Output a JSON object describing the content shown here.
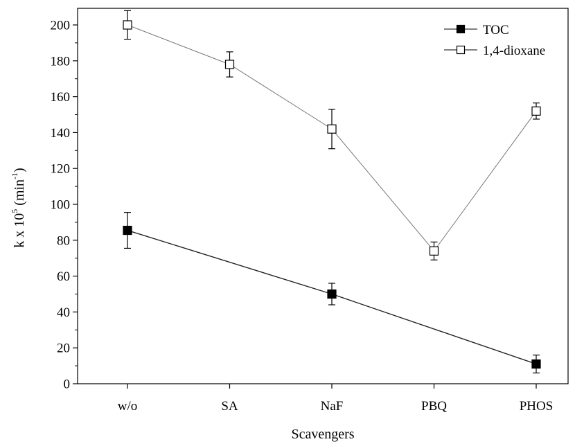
{
  "chart_data": {
    "type": "line",
    "categories": [
      "w/o",
      "SA",
      "NaF",
      "PBQ",
      "PHOS"
    ],
    "xlabel": "Scavengers",
    "ylabel": "k x 10",
    "ylabel_sup1": "5",
    "ylabel_mid": " (min",
    "ylabel_sup2": "-1",
    "ylabel_end": ")",
    "ylim": [
      0,
      210
    ],
    "yticks": [
      "0",
      "20",
      "40",
      "60",
      "80",
      "100",
      "120",
      "140",
      "160",
      "180",
      "200"
    ],
    "legend_position": "top-right",
    "grid": false,
    "series": [
      {
        "name": "TOC",
        "marker": "filled-square",
        "color": "#000000",
        "points": [
          {
            "category": "w/o",
            "value": 85.5,
            "error": 10
          },
          {
            "category": "NaF",
            "value": 50,
            "error": 6
          },
          {
            "category": "PHOS",
            "value": 11,
            "error": 5
          }
        ]
      },
      {
        "name": "1,4-dioxane",
        "marker": "open-square",
        "color": "#000000",
        "points": [
          {
            "category": "w/o",
            "value": 200,
            "error": 8
          },
          {
            "category": "SA",
            "value": 178,
            "error": 7
          },
          {
            "category": "NaF",
            "value": 142,
            "error": 11
          },
          {
            "category": "PBQ",
            "value": 74,
            "error": 5
          },
          {
            "category": "PHOS",
            "value": 152,
            "error": 4.5
          }
        ]
      }
    ]
  }
}
